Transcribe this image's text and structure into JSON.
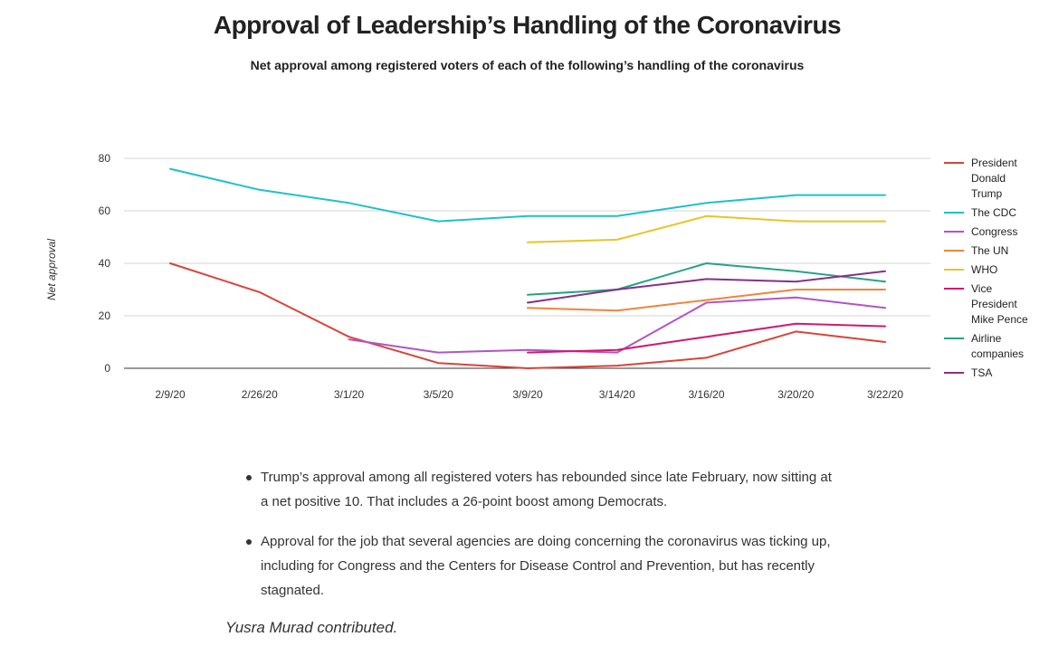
{
  "header": {
    "title": "Approval of Leadership’s Handling of the Coronavirus",
    "subtitle": "Net approval among registered voters of each of the following’s handling of the coronavirus"
  },
  "chart_data": {
    "type": "line",
    "title": "Approval of Leadership’s Handling of the Coronavirus",
    "subtitle": "Net approval among registered voters of each of the following’s handling of the coronavirus",
    "xlabel": "",
    "ylabel": "Net approval",
    "ylim": [
      0,
      80
    ],
    "yticks": [
      0,
      20,
      40,
      60,
      80
    ],
    "grid": "horizontal",
    "legend_position": "right",
    "categories": [
      "2/9/20",
      "2/26/20",
      "3/1/20",
      "3/5/20",
      "3/9/20",
      "3/14/20",
      "3/16/20",
      "3/20/20",
      "3/22/20"
    ],
    "series": [
      {
        "name": "President Donald Trump",
        "legend_lines": [
          "President",
          "Donald",
          "Trump"
        ],
        "color": "#d9433a",
        "values": [
          40,
          29,
          12,
          2,
          0,
          1,
          4,
          14,
          10
        ]
      },
      {
        "name": "The CDC",
        "legend_lines": [
          "The CDC"
        ],
        "color": "#1dc2c7",
        "values": [
          76,
          68,
          63,
          56,
          58,
          58,
          63,
          66,
          66
        ]
      },
      {
        "name": "Congress",
        "legend_lines": [
          "Congress"
        ],
        "color": "#b353c6",
        "values": [
          null,
          null,
          11,
          6,
          7,
          6,
          25,
          27,
          23
        ]
      },
      {
        "name": "The UN",
        "legend_lines": [
          "The UN"
        ],
        "color": "#f0853a",
        "values": [
          null,
          null,
          null,
          null,
          23,
          22,
          26,
          30,
          30
        ]
      },
      {
        "name": "WHO",
        "legend_lines": [
          "WHO"
        ],
        "color": "#e8c42a",
        "values": [
          null,
          null,
          null,
          null,
          48,
          49,
          58,
          56,
          56
        ]
      },
      {
        "name": "Vice President Mike Pence",
        "legend_lines": [
          "Vice",
          "President",
          "Mike Pence"
        ],
        "color": "#d1186a",
        "values": [
          null,
          null,
          null,
          null,
          6,
          7,
          12,
          17,
          16
        ]
      },
      {
        "name": "Airline companies",
        "legend_lines": [
          "Airline",
          "companies"
        ],
        "color": "#27a383",
        "values": [
          null,
          null,
          null,
          null,
          28,
          30,
          40,
          37,
          33
        ]
      },
      {
        "name": "TSA",
        "legend_lines": [
          "TSA"
        ],
        "color": "#862f8c",
        "values": [
          null,
          null,
          null,
          null,
          25,
          30,
          34,
          33,
          37
        ]
      }
    ]
  },
  "notes": [
    "Trump’s approval among all registered voters has rebounded since late February, now sitting at a net positive 10. That includes a 26-point boost among Democrats.",
    "Approval for the job that several agencies are doing concerning the coronavirus was ticking up, including for Congress and the Centers for Disease Control and Prevention, but has recently stagnated."
  ],
  "credit": "Yusra Murad contributed."
}
